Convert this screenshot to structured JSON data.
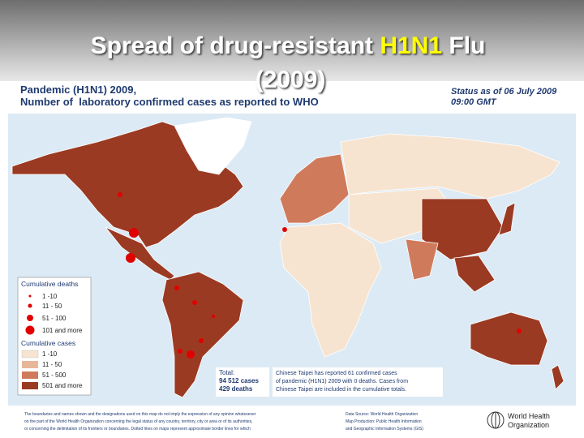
{
  "slide": {
    "title_parts": [
      "Spread of drug-resistant ",
      "H1N1",
      " Flu"
    ],
    "title_line2": "(2009)"
  },
  "map": {
    "heading": [
      "Pandemic (H1N1) 2009,",
      "Number of  laboratory confirmed cases as reported to WHO"
    ],
    "status": [
      "Status as of 06 July 2009",
      "09:00 GMT"
    ],
    "legend": {
      "deaths": {
        "title": "Cumulative deaths",
        "items": [
          "1 -10",
          "11 - 50",
          "51 - 100",
          "101 and more"
        ]
      },
      "cases": {
        "title": "Cumulative cases",
        "items": [
          "1 -10",
          "11 - 50",
          "51 - 500",
          "501 and more"
        ]
      }
    },
    "total": [
      "Total:",
      "94 512 cases",
      "429 deaths"
    ],
    "note": [
      "Chinese Taipei has reported 61 confirmed cases",
      "of pandemic (H1N1) 2009 with 0 deaths. Cases from",
      "Chinese Taipei are included in the cumulative totals."
    ],
    "disclaimer": [
      "The boundaries and names shown and the designations used on this map do not imply the expression of any opinion whatsoever",
      "on the part of the World Health Organization concerning the legal status of any country, territory, city or area or of its authorities,",
      "or concerning the delimitation of its frontiers or boundaries. Dotted lines on maps represent approximate border lines for which"
    ],
    "source": [
      "Data Source: World Health Organization",
      "Map Production: Public Health Information",
      "and Geographic Information Systems (GIS)"
    ],
    "organization": [
      "World Health",
      "Organization"
    ]
  }
}
